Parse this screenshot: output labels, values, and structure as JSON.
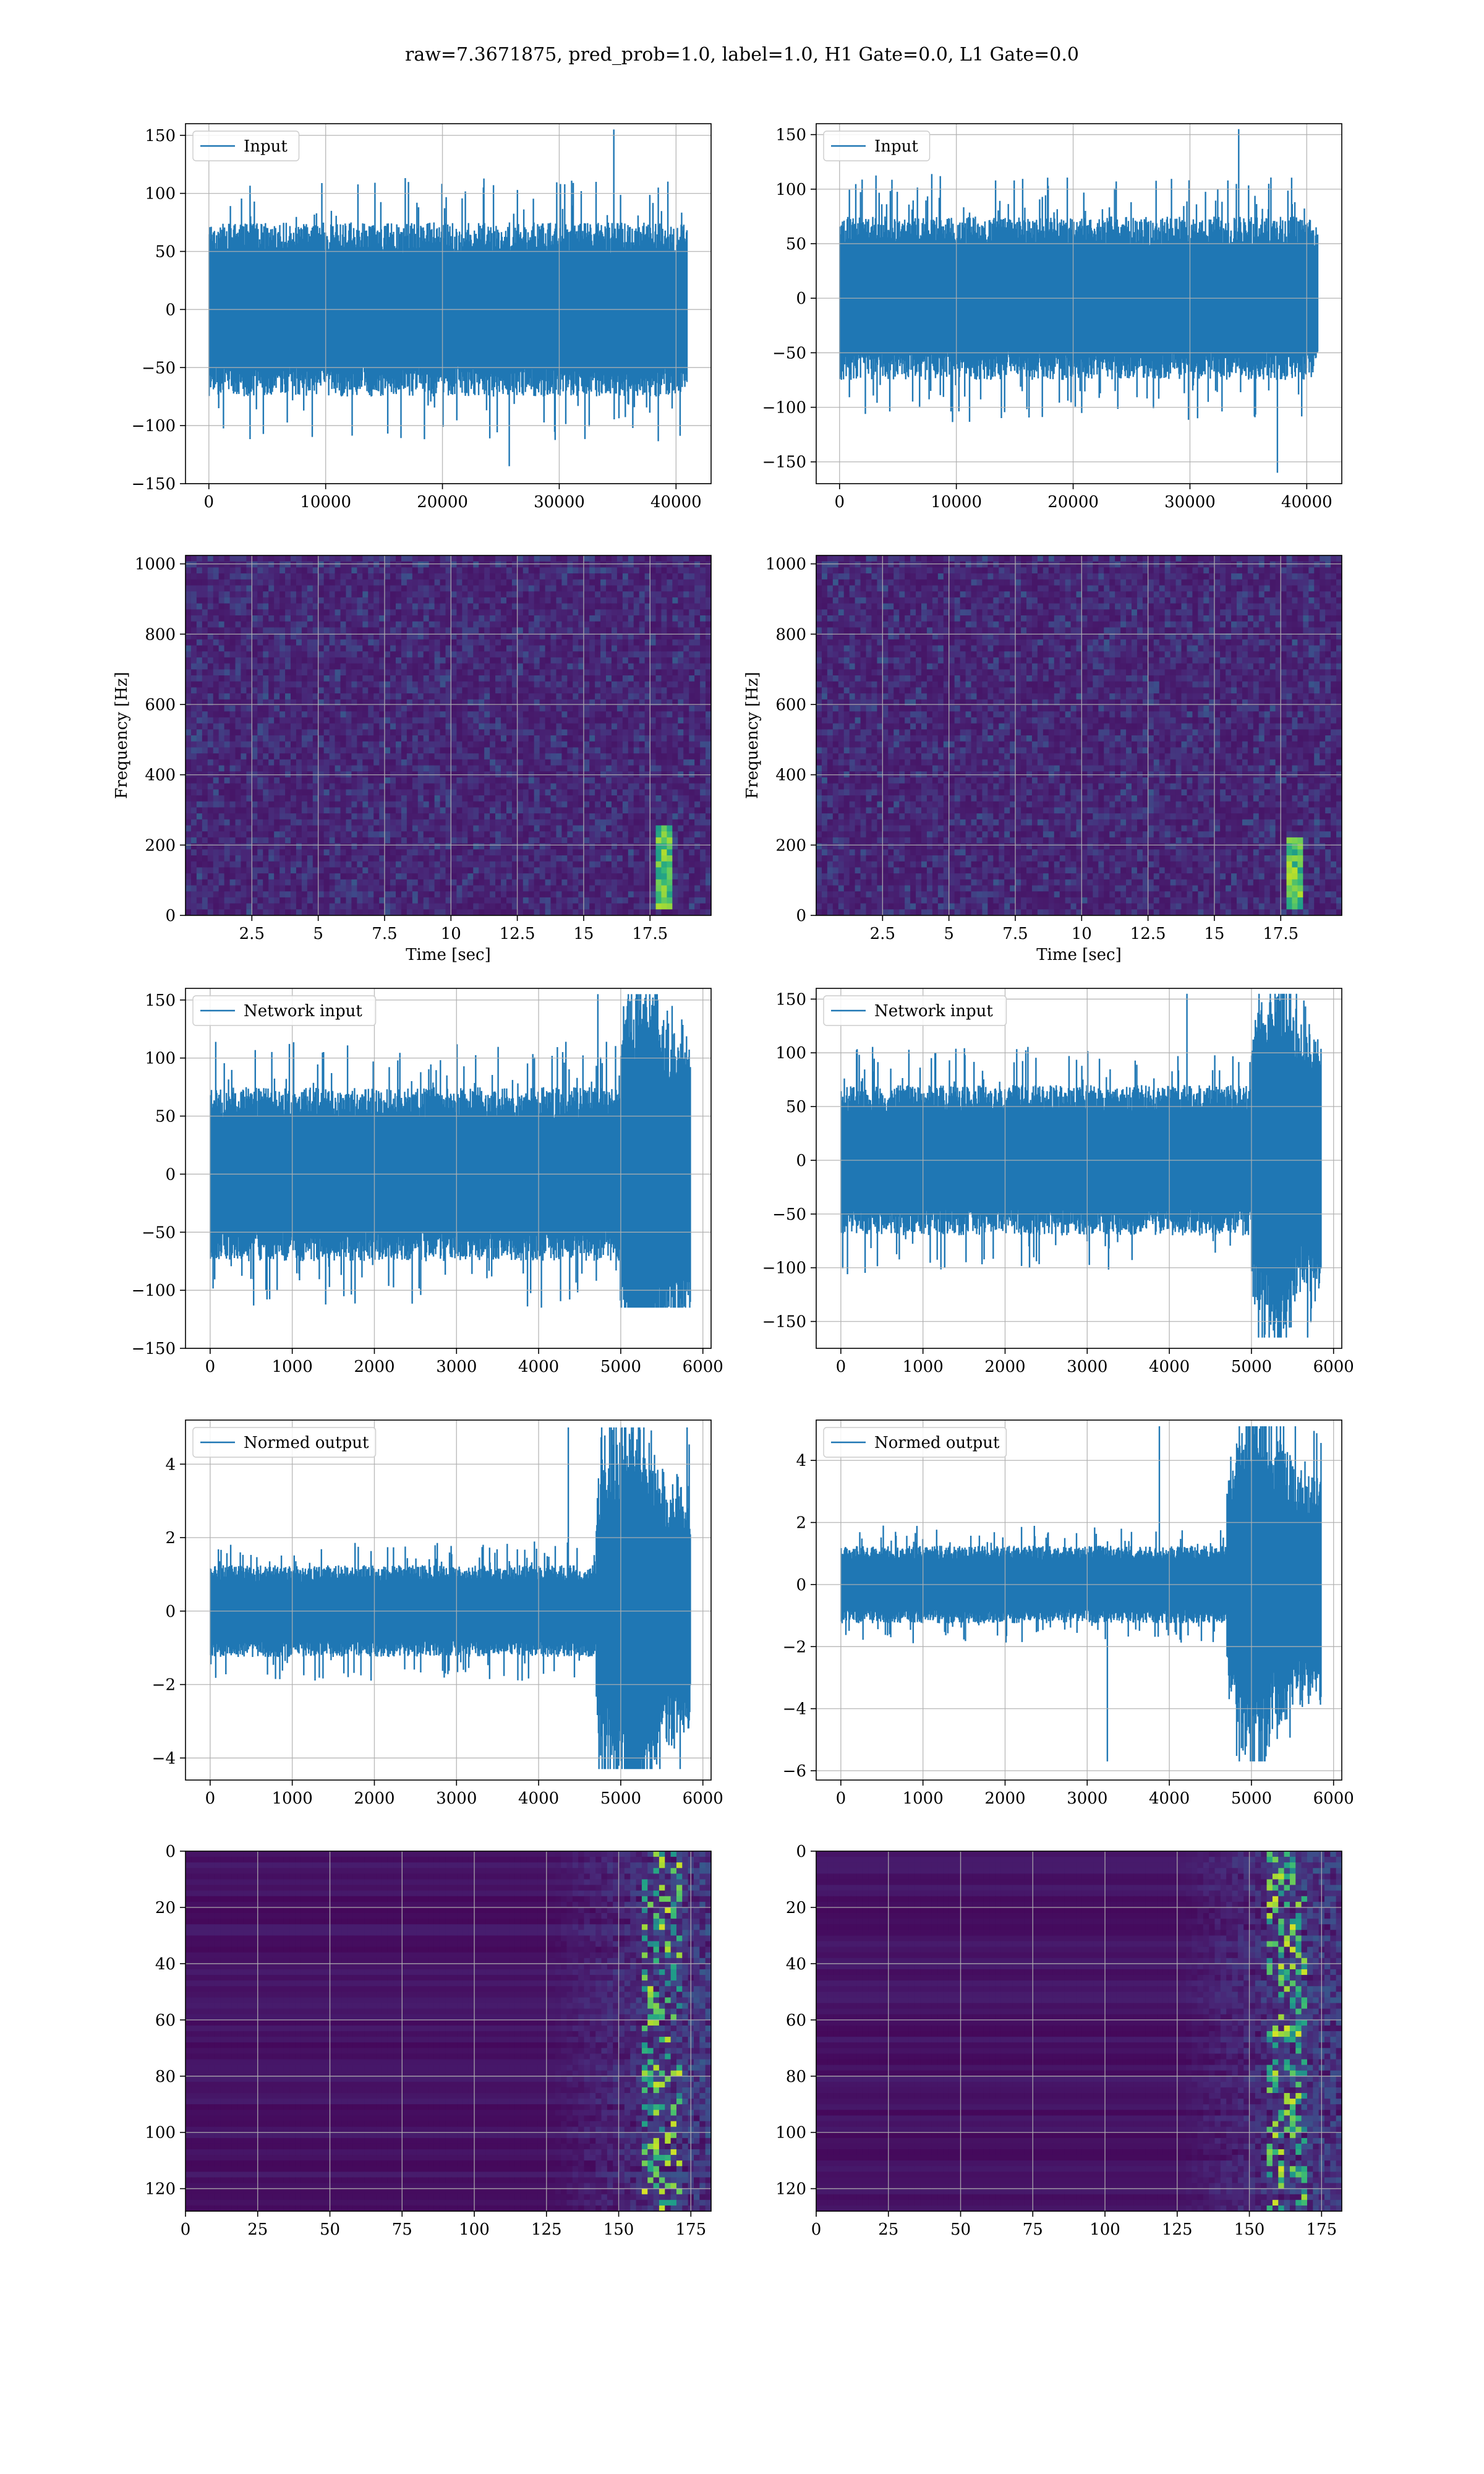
{
  "figure": {
    "suptitle": "raw=7.3671875, pred_prob=1.0, label=1.0, H1 Gate=0.0, L1 Gate=0.0"
  },
  "colors": {
    "line": "#1f77b4",
    "grid": "#b0b0b0",
    "viridis_low": "#440154",
    "viridis_mid": "#21918c",
    "viridis_high": "#fde725"
  },
  "chart_data": [
    {
      "id": "input-h1",
      "type": "line",
      "series": [
        {
          "name": "Input"
        }
      ],
      "legend": "top-left",
      "grid": true,
      "xlim": [
        -2000,
        43000
      ],
      "ylim": [
        -150,
        160
      ],
      "xticks": [
        0,
        10000,
        20000,
        30000,
        40000
      ],
      "yticks": [
        -150,
        -100,
        -50,
        0,
        50,
        100,
        150
      ],
      "signal": {
        "n": 40960,
        "amp": 30,
        "min": -135,
        "max": 155
      },
      "xlabel": "",
      "ylabel": ""
    },
    {
      "id": "input-l1",
      "type": "line",
      "series": [
        {
          "name": "Input"
        }
      ],
      "legend": "top-left",
      "grid": true,
      "xlim": [
        -2000,
        43000
      ],
      "ylim": [
        -170,
        160
      ],
      "xticks": [
        0,
        10000,
        20000,
        30000,
        40000
      ],
      "yticks": [
        -150,
        -100,
        -50,
        0,
        50,
        100,
        150
      ],
      "signal": {
        "n": 40960,
        "amp": 30,
        "min": -160,
        "max": 155
      },
      "xlabel": "",
      "ylabel": ""
    },
    {
      "id": "spectrogram-h1",
      "type": "heatmap",
      "grid": true,
      "xlim": [
        0,
        19.8
      ],
      "ylim": [
        0,
        1024
      ],
      "xticks": [
        2.5,
        5.0,
        7.5,
        10.0,
        12.5,
        15.0,
        17.5
      ],
      "yticks": [
        0,
        200,
        400,
        600,
        800,
        1000
      ],
      "xlabel": "Time [sec]",
      "ylabel": "Frequency [Hz]",
      "chirp": {
        "t": 18.0,
        "f_max": 250
      }
    },
    {
      "id": "spectrogram-l1",
      "type": "heatmap",
      "grid": true,
      "xlim": [
        0,
        19.8
      ],
      "ylim": [
        0,
        1024
      ],
      "xticks": [
        2.5,
        5.0,
        7.5,
        10.0,
        12.5,
        15.0,
        17.5
      ],
      "yticks": [
        0,
        200,
        400,
        600,
        800,
        1000
      ],
      "xlabel": "Time [sec]",
      "ylabel": "Frequency [Hz]",
      "chirp": {
        "t": 18.0,
        "f_max": 220
      }
    },
    {
      "id": "network-input-h1",
      "type": "line",
      "series": [
        {
          "name": "Network input"
        }
      ],
      "legend": "top-left",
      "grid": true,
      "xlim": [
        -300,
        6100
      ],
      "ylim": [
        -150,
        160
      ],
      "xticks": [
        0,
        1000,
        2000,
        3000,
        4000,
        5000,
        6000
      ],
      "yticks": [
        -150,
        -100,
        -50,
        0,
        50,
        100,
        150
      ],
      "signal": {
        "n": 5850,
        "amp": 30,
        "min": -115,
        "max": 155,
        "burst_start": 5000,
        "burst_amp": 40
      },
      "xlabel": "",
      "ylabel": ""
    },
    {
      "id": "network-input-l1",
      "type": "line",
      "series": [
        {
          "name": "Network input"
        }
      ],
      "legend": "top-left",
      "grid": true,
      "xlim": [
        -300,
        6100
      ],
      "ylim": [
        -175,
        160
      ],
      "xticks": [
        0,
        1000,
        2000,
        3000,
        4000,
        5000,
        6000
      ],
      "yticks": [
        -150,
        -100,
        -50,
        0,
        50,
        100,
        150
      ],
      "signal": {
        "n": 5850,
        "amp": 28,
        "min": -165,
        "max": 155,
        "burst_start": 5000,
        "burst_amp": 40
      },
      "xlabel": "",
      "ylabel": ""
    },
    {
      "id": "normed-output-h1",
      "type": "line",
      "series": [
        {
          "name": "Normed output"
        }
      ],
      "legend": "top-left",
      "grid": true,
      "xlim": [
        -300,
        6100
      ],
      "ylim": [
        -4.6,
        5.2
      ],
      "xticks": [
        0,
        1000,
        2000,
        3000,
        4000,
        5000,
        6000
      ],
      "yticks": [
        -4,
        -2,
        0,
        2,
        4
      ],
      "signal": {
        "n": 5850,
        "amp": 0.5,
        "min": -4.3,
        "max": 5.0,
        "burst_start": 4700,
        "burst_amp": 1.6
      },
      "xlabel": "",
      "ylabel": ""
    },
    {
      "id": "normed-output-l1",
      "type": "line",
      "series": [
        {
          "name": "Normed output"
        }
      ],
      "legend": "top-left",
      "grid": true,
      "xlim": [
        -300,
        6100
      ],
      "ylim": [
        -6.3,
        5.3
      ],
      "xticks": [
        0,
        1000,
        2000,
        3000,
        4000,
        5000,
        6000
      ],
      "yticks": [
        -6,
        -4,
        -2,
        0,
        2,
        4
      ],
      "signal": {
        "n": 5850,
        "amp": 0.5,
        "min": -5.7,
        "max": 5.1,
        "burst_start": 4700,
        "burst_amp": 1.7
      },
      "xlabel": "",
      "ylabel": ""
    },
    {
      "id": "feature-map-h1",
      "type": "heatmap",
      "grid": true,
      "xlim": [
        0,
        182
      ],
      "ylim": [
        128,
        0
      ],
      "xticks": [
        0,
        25,
        50,
        75,
        100,
        125,
        150,
        175
      ],
      "yticks": [
        0,
        20,
        40,
        60,
        80,
        100,
        120
      ],
      "xlabel": "",
      "ylabel": "",
      "activity_start": 125,
      "peak": 165
    },
    {
      "id": "feature-map-l1",
      "type": "heatmap",
      "grid": true,
      "xlim": [
        0,
        182
      ],
      "ylim": [
        128,
        0
      ],
      "xticks": [
        0,
        25,
        50,
        75,
        100,
        125,
        150,
        175
      ],
      "yticks": [
        0,
        20,
        40,
        60,
        80,
        100,
        120
      ],
      "xlabel": "",
      "ylabel": "",
      "activity_start": 125,
      "peak": 163
    }
  ]
}
